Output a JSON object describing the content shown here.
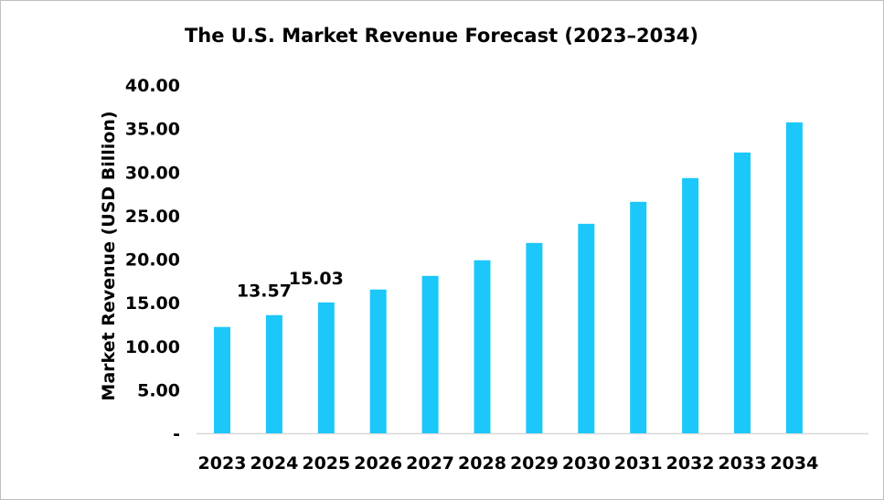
{
  "chart_data": {
    "type": "bar",
    "title": "The U.S. Market Revenue Forecast (2023–2034)",
    "xlabel": "",
    "ylabel": "Market Revenue (USD Billion)",
    "categories": [
      "2023",
      "2024",
      "2025",
      "2026",
      "2027",
      "2028",
      "2029",
      "2030",
      "2031",
      "2032",
      "2033",
      "2034"
    ],
    "values": [
      12.21,
      13.57,
      15.03,
      16.51,
      18.08,
      19.87,
      21.86,
      24.06,
      26.58,
      29.31,
      32.25,
      35.71
    ],
    "data_labels": {
      "2024": "13.57",
      "2025": "15.03"
    },
    "ylim": [
      0,
      40
    ],
    "yticks": [
      "-",
      "5.00",
      "10.00",
      "15.00",
      "20.00",
      "25.00",
      "30.00",
      "35.00",
      "40.00"
    ],
    "grid": false,
    "legend": "none",
    "bar_color": "#1CC7FA"
  }
}
